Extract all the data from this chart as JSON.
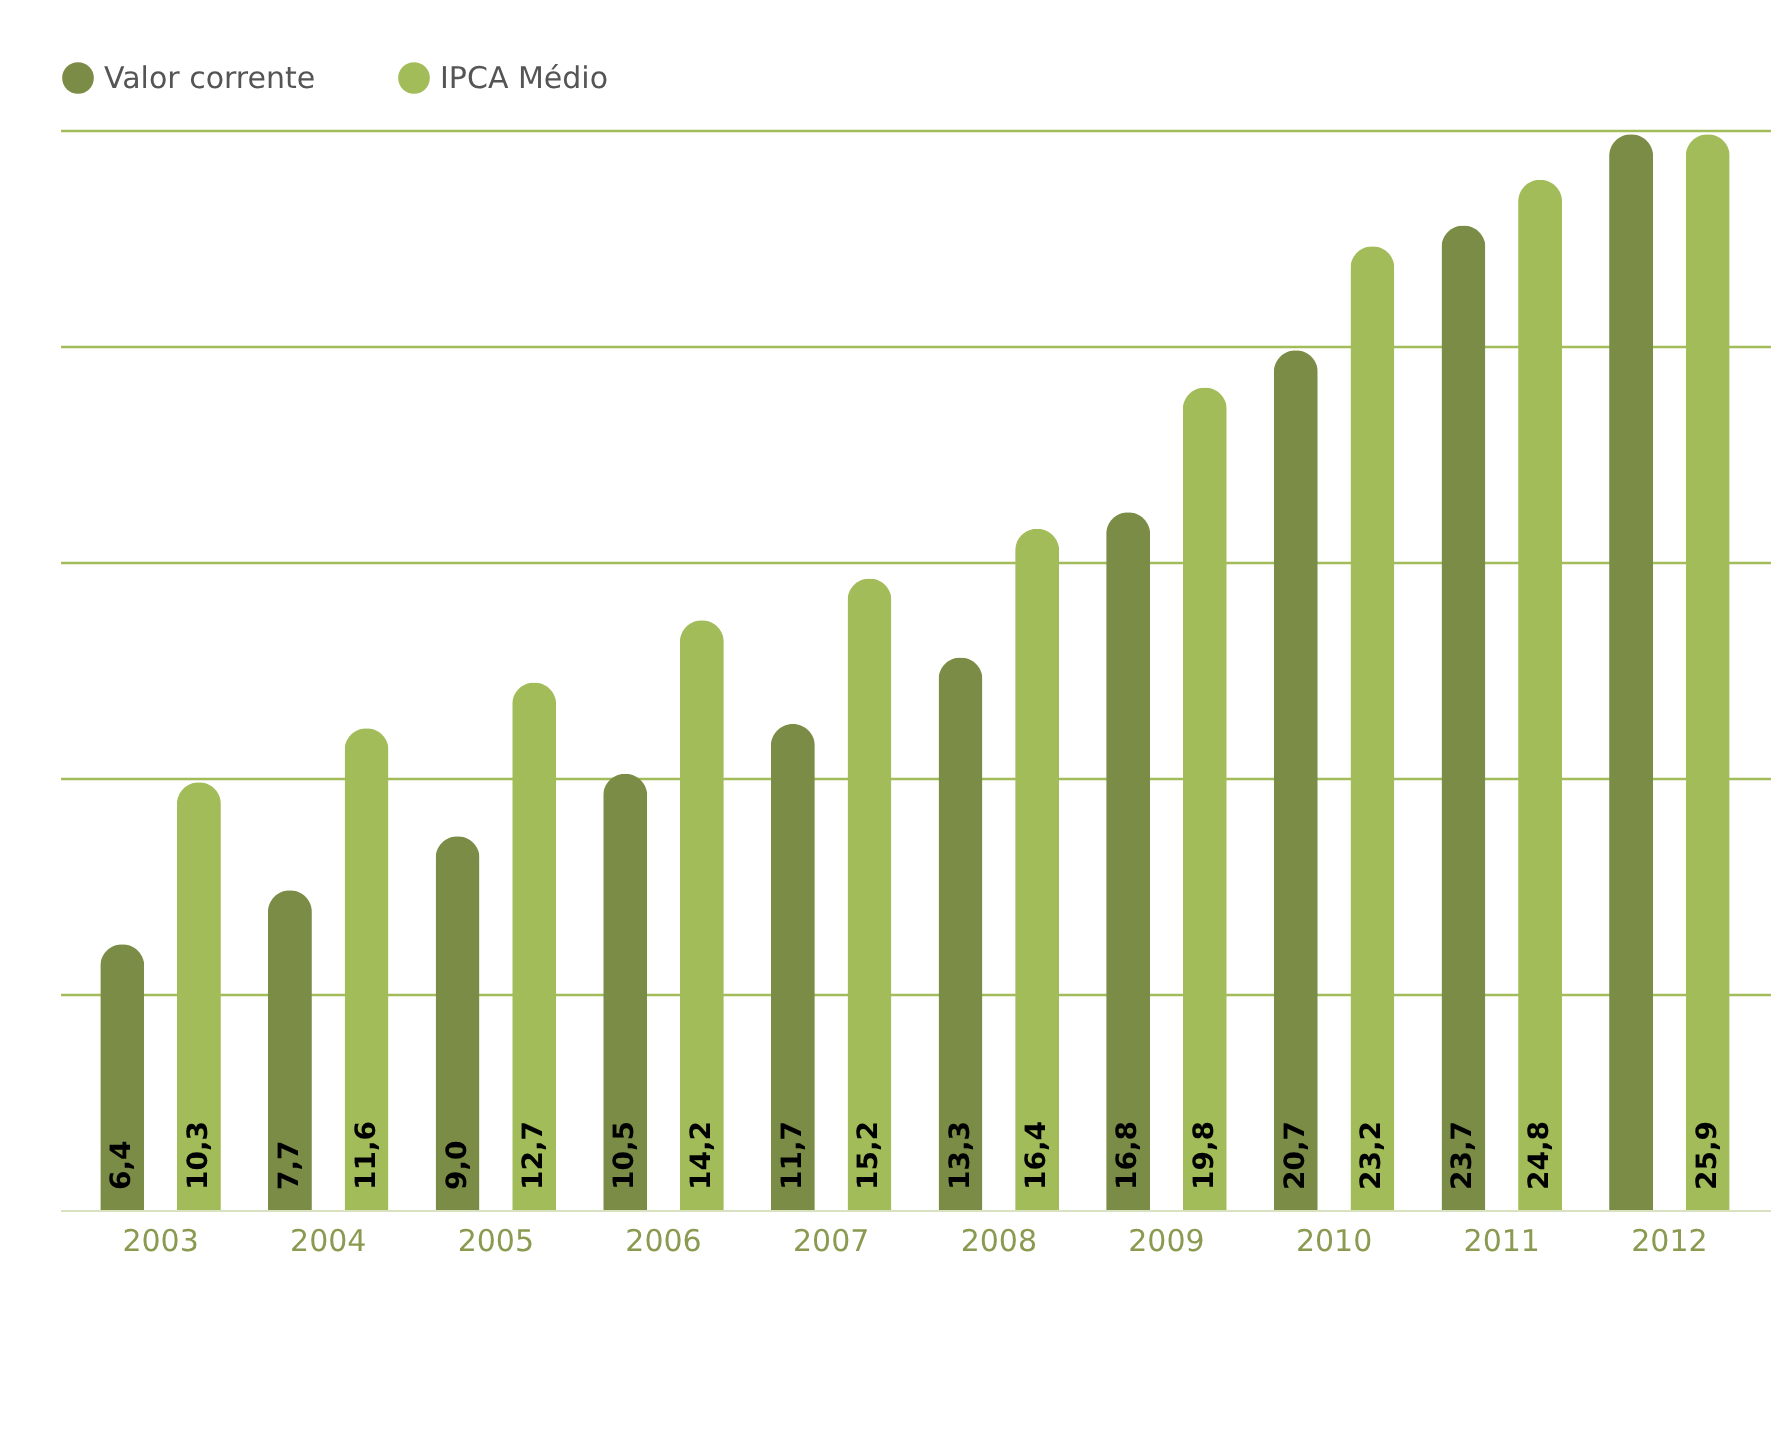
{
  "chart_data": {
    "type": "bar",
    "categories": [
      "2003",
      "2004",
      "2005",
      "2006",
      "2007",
      "2008",
      "2009",
      "2010",
      "2011",
      "2012"
    ],
    "series": [
      {
        "name": "Valor corrente",
        "color": "#7a8c45",
        "values": [
          6.4,
          7.7,
          9.0,
          10.5,
          11.7,
          13.3,
          16.8,
          20.7,
          23.7,
          25.9
        ],
        "value_labels": [
          "6,4",
          "7,7",
          "9,0",
          "10,5",
          "11,7",
          "13,3",
          "16,8",
          "20,7",
          "23,7",
          null
        ]
      },
      {
        "name": "IPCA Médio",
        "color": "#a3bc5a",
        "values": [
          10.3,
          11.6,
          12.7,
          14.2,
          15.2,
          16.4,
          19.8,
          23.2,
          24.8,
          25.9
        ],
        "value_labels": [
          "10,3",
          "11,6",
          "12,7",
          "14,2",
          "15,2",
          "16,4",
          "19,8",
          "23,2",
          "24,8",
          "25,9"
        ]
      }
    ],
    "ylim": [
      0,
      26
    ],
    "yticks": [
      {
        "value": 5.2,
        "label": null
      },
      {
        "value": 10.4,
        "label": null
      },
      {
        "value": 15.6,
        "label": null
      },
      {
        "value": 20.8,
        "label": null
      },
      {
        "value": 26,
        "label": null
      }
    ],
    "grid": "y",
    "legend": "top",
    "tick_labels": "x"
  }
}
